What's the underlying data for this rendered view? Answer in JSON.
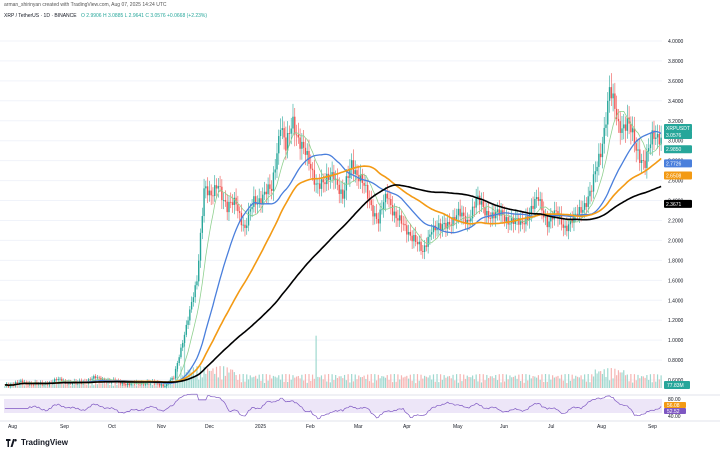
{
  "header": {
    "author_line": "arman_shirinyan created with TradingView.com, Aug 07, 2025 14:24 UTC",
    "symbol_line": "XRP / TetherUS · 1D · BINANCE",
    "ohlc": "O 2.9906  H 3.0885  L 2.9641  C 3.0576  +0.0668 (+2.23%)"
  },
  "footer": {
    "brand": "TradingView"
  },
  "colors": {
    "up": "#26a69a",
    "down": "#ef5350",
    "ma_fast": "#8fd08f",
    "ma_blue": "#4a7fdc",
    "ma_orange": "#f39a14",
    "ma_black": "#000000",
    "rsi_line": "#7e57c2",
    "rsi_band": "#ede6f8",
    "grid": "#f0f3fa"
  },
  "chart_data": {
    "type": "candlestick",
    "symbol": "XRP/USDT",
    "timeframe": "1D",
    "x_labels": [
      "Aug",
      "Sep",
      "Oct",
      "Nov",
      "Dec",
      "2025",
      "Feb",
      "Mar",
      "Apr",
      "May",
      "Jun",
      "Jul",
      "Aug",
      "Sep"
    ],
    "y_ticks": [
      "4.0000",
      "3.8000",
      "3.6000",
      "3.4000",
      "3.2000",
      "3.0000",
      "2.8000",
      "2.6000",
      "2.4000",
      "2.2000",
      "2.0000",
      "1.8000",
      "1.6000",
      "1.4000",
      "1.2000",
      "1.0000",
      "0.8000",
      "0.6000"
    ],
    "ylim": [
      0.4,
      4.1
    ],
    "price_path": [
      [
        0,
        0.55
      ],
      [
        10,
        0.58
      ],
      [
        20,
        0.56
      ],
      [
        30,
        0.6
      ],
      [
        40,
        0.57
      ],
      [
        50,
        0.62
      ],
      [
        60,
        0.59
      ],
      [
        70,
        0.56
      ],
      [
        80,
        0.58
      ],
      [
        90,
        0.55
      ],
      [
        95,
        0.62
      ],
      [
        100,
        1.0
      ],
      [
        105,
        1.35
      ],
      [
        108,
        1.6
      ],
      [
        112,
        2.55
      ],
      [
        116,
        2.4
      ],
      [
        120,
        2.6
      ],
      [
        125,
        2.3
      ],
      [
        130,
        2.4
      ],
      [
        135,
        2.1
      ],
      [
        140,
        2.4
      ],
      [
        145,
        2.45
      ],
      [
        150,
        2.5
      ],
      [
        155,
        3.2
      ],
      [
        158,
        2.9
      ],
      [
        162,
        3.2
      ],
      [
        166,
        3.0
      ],
      [
        170,
        2.8
      ],
      [
        175,
        2.6
      ],
      [
        180,
        2.55
      ],
      [
        185,
        2.7
      ],
      [
        190,
        2.4
      ],
      [
        195,
        2.8
      ],
      [
        200,
        2.6
      ],
      [
        205,
        2.4
      ],
      [
        210,
        2.2
      ],
      [
        215,
        2.45
      ],
      [
        220,
        2.25
      ],
      [
        225,
        2.1
      ],
      [
        230,
        2.05
      ],
      [
        235,
        1.85
      ],
      [
        240,
        2.15
      ],
      [
        245,
        2.1
      ],
      [
        250,
        2.2
      ],
      [
        255,
        2.25
      ],
      [
        260,
        2.2
      ],
      [
        265,
        2.4
      ],
      [
        270,
        2.3
      ],
      [
        275,
        2.25
      ],
      [
        280,
        2.25
      ],
      [
        285,
        2.2
      ],
      [
        290,
        2.15
      ],
      [
        295,
        2.3
      ],
      [
        300,
        2.4
      ],
      [
        305,
        2.2
      ],
      [
        310,
        2.25
      ],
      [
        315,
        2.15
      ],
      [
        320,
        2.2
      ],
      [
        325,
        2.35
      ],
      [
        330,
        2.5
      ],
      [
        335,
        2.9
      ],
      [
        340,
        3.5
      ],
      [
        345,
        3.15
      ],
      [
        350,
        3.2
      ],
      [
        355,
        2.9
      ],
      [
        360,
        2.8
      ],
      [
        364,
        3.0
      ],
      [
        368,
        3.06
      ]
    ],
    "ma_fast_last": 3.0576,
    "ma_blue_last": 2.7726,
    "ma_orange_last": 2.6508,
    "ma_black_last": 2.3671,
    "price_labels": [
      {
        "text": "XRPUSDT",
        "value": 3.0576,
        "color": "#26a69a"
      },
      {
        "text": "3.0576",
        "value": 3.0576,
        "color": "#26a69a"
      },
      {
        "text": "2.9850",
        "value": 2.985,
        "color": "#26a69a"
      },
      {
        "text": "2.7726",
        "value": 2.7726,
        "color": "#4a7fdc"
      },
      {
        "text": "2.6508",
        "value": 2.6508,
        "color": "#f39a14"
      },
      {
        "text": "2.3671",
        "value": 2.3671,
        "color": "#000000"
      }
    ],
    "volume_label": "77.83M",
    "rsi": {
      "ticks": [
        "80.00",
        "40.00"
      ],
      "labels": [
        "56.08",
        "52.52"
      ],
      "last": 52.52
    }
  }
}
